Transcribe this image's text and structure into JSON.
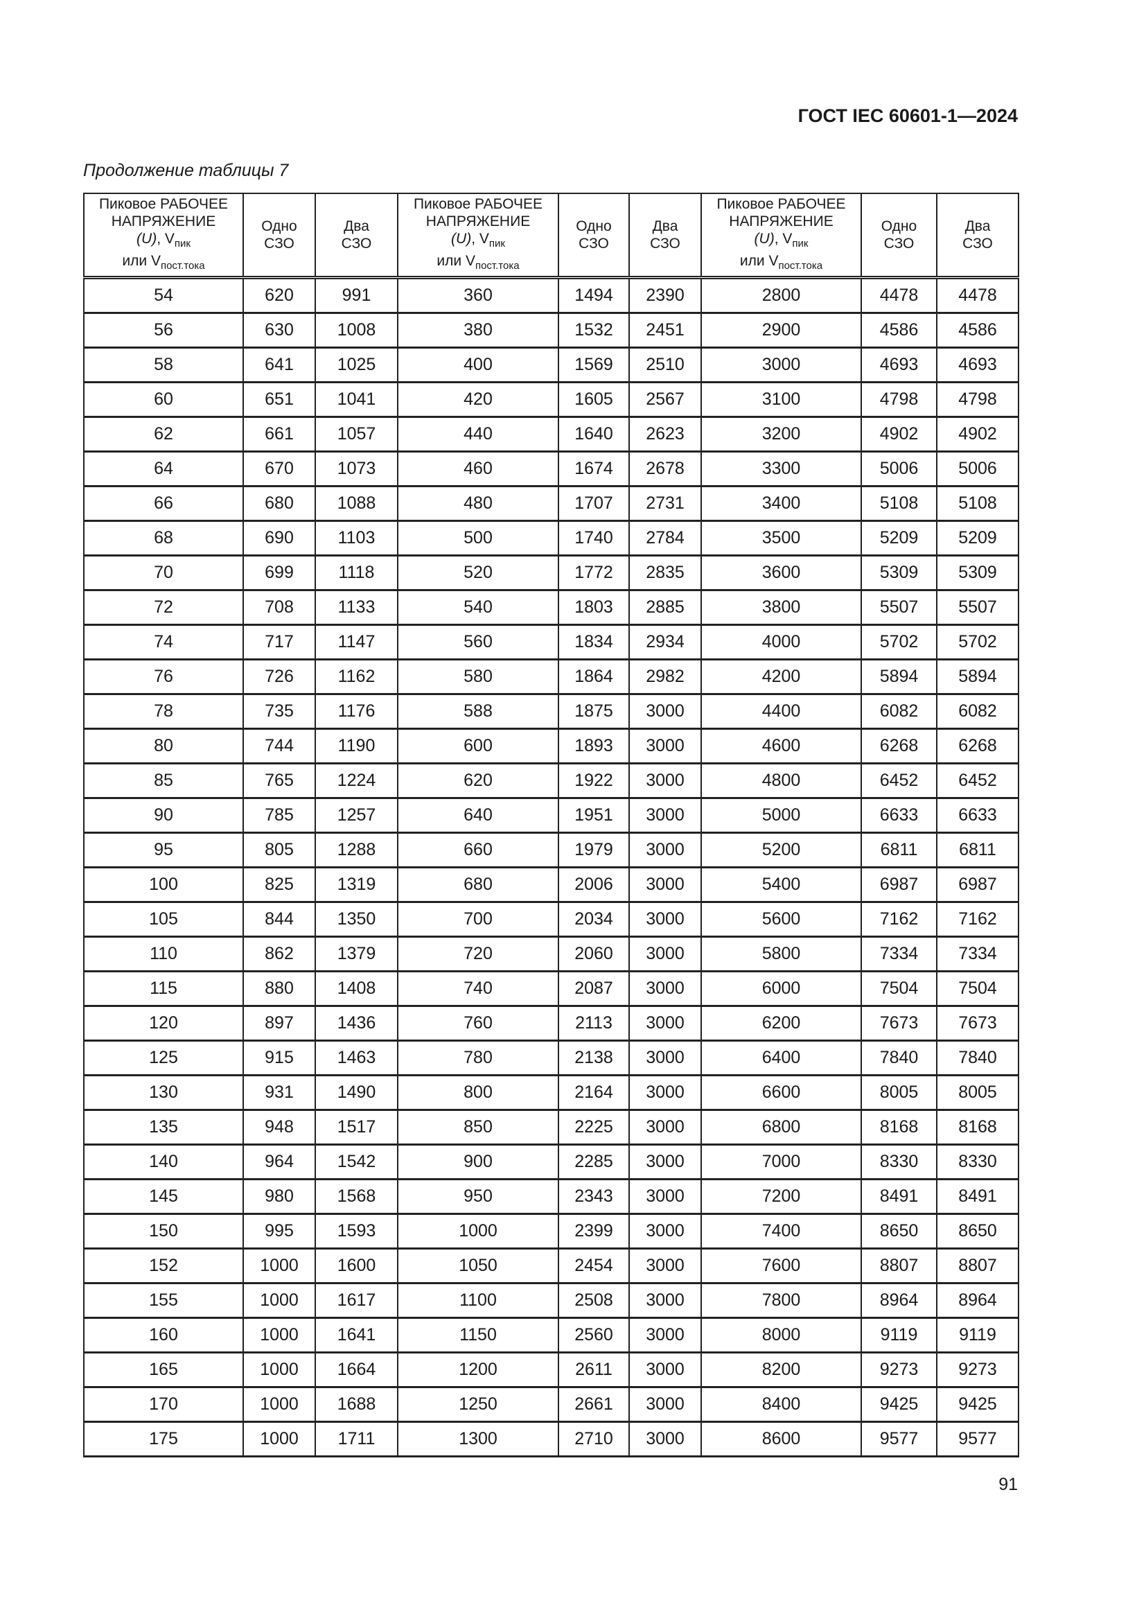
{
  "header": {
    "doc_code": "ГОСТ IEC 60601-1—2024"
  },
  "caption": "Продолжение таблицы 7",
  "table": {
    "headers": {
      "voltage_line1": "Пиковое РАБОЧЕЕ",
      "voltage_line2": "НАПРЯЖЕНИЕ",
      "voltage_u": "(U)",
      "voltage_v": ", V",
      "voltage_sub_peak": "пик",
      "voltage_or": "или V",
      "voltage_sub_dc": "пост.тока",
      "one_line1": "Одно",
      "one_line2": "СЗО",
      "two_line1": "Два",
      "two_line2": "СЗО"
    },
    "rows": [
      [
        "54",
        "620",
        "991",
        "360",
        "1494",
        "2390",
        "2800",
        "4478",
        "4478"
      ],
      [
        "56",
        "630",
        "1008",
        "380",
        "1532",
        "2451",
        "2900",
        "4586",
        "4586"
      ],
      [
        "58",
        "641",
        "1025",
        "400",
        "1569",
        "2510",
        "3000",
        "4693",
        "4693"
      ],
      [
        "60",
        "651",
        "1041",
        "420",
        "1605",
        "2567",
        "3100",
        "4798",
        "4798"
      ],
      [
        "62",
        "661",
        "1057",
        "440",
        "1640",
        "2623",
        "3200",
        "4902",
        "4902"
      ],
      [
        "64",
        "670",
        "1073",
        "460",
        "1674",
        "2678",
        "3300",
        "5006",
        "5006"
      ],
      [
        "66",
        "680",
        "1088",
        "480",
        "1707",
        "2731",
        "3400",
        "5108",
        "5108"
      ],
      [
        "68",
        "690",
        "1103",
        "500",
        "1740",
        "2784",
        "3500",
        "5209",
        "5209"
      ],
      [
        "70",
        "699",
        "1118",
        "520",
        "1772",
        "2835",
        "3600",
        "5309",
        "5309"
      ],
      [
        "72",
        "708",
        "1133",
        "540",
        "1803",
        "2885",
        "3800",
        "5507",
        "5507"
      ],
      [
        "74",
        "717",
        "1147",
        "560",
        "1834",
        "2934",
        "4000",
        "5702",
        "5702"
      ],
      [
        "76",
        "726",
        "1162",
        "580",
        "1864",
        "2982",
        "4200",
        "5894",
        "5894"
      ],
      [
        "78",
        "735",
        "1176",
        "588",
        "1875",
        "3000",
        "4400",
        "6082",
        "6082"
      ],
      [
        "80",
        "744",
        "1190",
        "600",
        "1893",
        "3000",
        "4600",
        "6268",
        "6268"
      ],
      [
        "85",
        "765",
        "1224",
        "620",
        "1922",
        "3000",
        "4800",
        "6452",
        "6452"
      ],
      [
        "90",
        "785",
        "1257",
        "640",
        "1951",
        "3000",
        "5000",
        "6633",
        "6633"
      ],
      [
        "95",
        "805",
        "1288",
        "660",
        "1979",
        "3000",
        "5200",
        "6811",
        "6811"
      ],
      [
        "100",
        "825",
        "1319",
        "680",
        "2006",
        "3000",
        "5400",
        "6987",
        "6987"
      ],
      [
        "105",
        "844",
        "1350",
        "700",
        "2034",
        "3000",
        "5600",
        "7162",
        "7162"
      ],
      [
        "110",
        "862",
        "1379",
        "720",
        "2060",
        "3000",
        "5800",
        "7334",
        "7334"
      ],
      [
        "115",
        "880",
        "1408",
        "740",
        "2087",
        "3000",
        "6000",
        "7504",
        "7504"
      ],
      [
        "120",
        "897",
        "1436",
        "760",
        "2113",
        "3000",
        "6200",
        "7673",
        "7673"
      ],
      [
        "125",
        "915",
        "1463",
        "780",
        "2138",
        "3000",
        "6400",
        "7840",
        "7840"
      ],
      [
        "130",
        "931",
        "1490",
        "800",
        "2164",
        "3000",
        "6600",
        "8005",
        "8005"
      ],
      [
        "135",
        "948",
        "1517",
        "850",
        "2225",
        "3000",
        "6800",
        "8168",
        "8168"
      ],
      [
        "140",
        "964",
        "1542",
        "900",
        "2285",
        "3000",
        "7000",
        "8330",
        "8330"
      ],
      [
        "145",
        "980",
        "1568",
        "950",
        "2343",
        "3000",
        "7200",
        "8491",
        "8491"
      ],
      [
        "150",
        "995",
        "1593",
        "1000",
        "2399",
        "3000",
        "7400",
        "8650",
        "8650"
      ],
      [
        "152",
        "1000",
        "1600",
        "1050",
        "2454",
        "3000",
        "7600",
        "8807",
        "8807"
      ],
      [
        "155",
        "1000",
        "1617",
        "1100",
        "2508",
        "3000",
        "7800",
        "8964",
        "8964"
      ],
      [
        "160",
        "1000",
        "1641",
        "1150",
        "2560",
        "3000",
        "8000",
        "9119",
        "9119"
      ],
      [
        "165",
        "1000",
        "1664",
        "1200",
        "2611",
        "3000",
        "8200",
        "9273",
        "9273"
      ],
      [
        "170",
        "1000",
        "1688",
        "1250",
        "2661",
        "3000",
        "8400",
        "9425",
        "9425"
      ],
      [
        "175",
        "1000",
        "1711",
        "1300",
        "2710",
        "3000",
        "8600",
        "9577",
        "9577"
      ]
    ]
  },
  "footer": {
    "page_number": "91"
  }
}
